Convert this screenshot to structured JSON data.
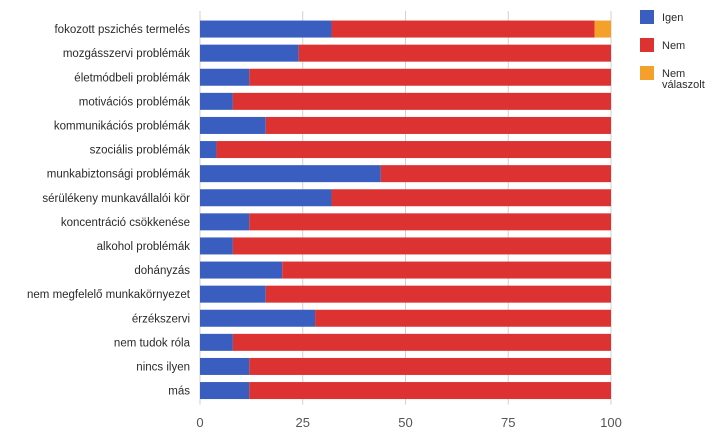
{
  "chart_data": {
    "type": "bar",
    "orientation": "horizontal",
    "stacked": true,
    "categories": [
      "fokozott pszichés termelés",
      "mozgásszervi problémák",
      "életmódbeli problémák",
      "motivációs problémák",
      "kommunikációs problémák",
      "szociális problémák",
      "munkabiztonsági problémák",
      "sérülékeny munkavállalói kör",
      "koncentráció csökkenése",
      "alkohol problémák",
      "dohányzás",
      "nem megfelelő munkakörnyezet",
      "érzékszervi",
      "nem tudok róla",
      "nincs ilyen",
      "más"
    ],
    "series": [
      {
        "name": "Igen",
        "color": "#3a5ec0",
        "values": [
          32,
          24,
          12,
          8,
          16,
          4,
          44,
          32,
          12,
          8,
          20,
          16,
          28,
          8,
          12,
          12
        ]
      },
      {
        "name": "Nem",
        "color": "#dc3232",
        "values": [
          64,
          76,
          88,
          92,
          84,
          96,
          56,
          68,
          88,
          92,
          80,
          84,
          72,
          92,
          88,
          88
        ]
      },
      {
        "name": "Nem válaszolt",
        "color": "#f5a02a",
        "values": [
          4,
          0,
          0,
          0,
          0,
          0,
          0,
          0,
          0,
          0,
          0,
          0,
          0,
          0,
          0,
          0
        ]
      }
    ],
    "xlim": [
      0,
      100
    ],
    "xticks": [
      0,
      25,
      50,
      75,
      100
    ],
    "grid": true,
    "legend_position": "top-right",
    "legend": [
      {
        "key": "Igen",
        "lines": [
          "Igen"
        ]
      },
      {
        "key": "Nem",
        "lines": [
          "Nem"
        ]
      },
      {
        "key": "Nem válaszolt",
        "lines": [
          "Nem",
          "válaszolt"
        ]
      }
    ],
    "title": "",
    "xlabel": "",
    "ylabel": ""
  }
}
